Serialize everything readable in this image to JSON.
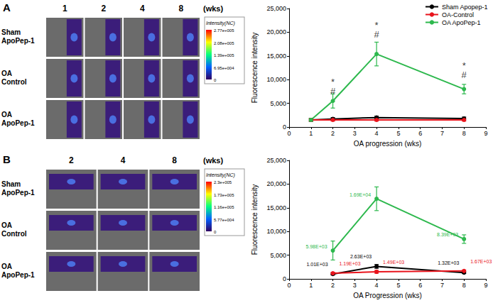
{
  "image_panels": [
    {
      "label": "A",
      "columns": [
        "1",
        "2",
        "4",
        "8"
      ],
      "unit": "(wks)",
      "rows": [
        "Sham ApoPep-1",
        "OA Control",
        "OA ApoPep-1"
      ],
      "colorbar": {
        "title": "Intensity(NC)",
        "labels": [
          "2.77e+005",
          "2.08e+005",
          "1.39e+005",
          "6.95e+004",
          "0"
        ]
      }
    },
    {
      "label": "B",
      "columns": [
        "2",
        "4",
        "8"
      ],
      "unit": "(wks)",
      "rows": [
        "Sham ApoPep-1",
        "OA Control",
        "OA ApoPep-1"
      ],
      "colorbar": {
        "title": "Intensity(NC)",
        "labels": [
          "2.3e+005",
          "1.73e+005",
          "1.16e+005",
          "5.77e+004",
          "0"
        ]
      }
    }
  ],
  "chart_data": [
    {
      "type": "line",
      "x_label": "OA progression (wks)",
      "y_label": "Fluorescence intensity",
      "xlim": [
        0,
        9
      ],
      "xticks": [
        0,
        1,
        2,
        3,
        4,
        5,
        6,
        7,
        8,
        9
      ],
      "ylim": [
        0,
        25000
      ],
      "yticks": [
        0,
        {
          "value": 5000,
          "label": "5,000"
        },
        {
          "value": 10000,
          "label": "10,000"
        },
        {
          "value": 15000,
          "label": "15,000"
        },
        {
          "value": 20000,
          "label": "20,000"
        },
        {
          "value": 25000,
          "label": "25,000"
        }
      ],
      "grid": false,
      "legend": "top-right",
      "marker": "circle",
      "series": [
        {
          "name": "Sham Apopep-1",
          "color": "#000000",
          "x": [
            1,
            2,
            4,
            8
          ],
          "values": [
            1500,
            1700,
            2000,
            1800
          ],
          "errors": [
            300,
            300,
            300,
            300
          ]
        },
        {
          "name": "OA-Control",
          "color": "#e8141c",
          "x": [
            1,
            2,
            4,
            8
          ],
          "values": [
            1500,
            1500,
            1500,
            1500
          ],
          "errors": [
            250,
            250,
            250,
            250
          ]
        },
        {
          "name": "OA ApoPep-1",
          "color": "#2db84d",
          "x": [
            1,
            2,
            4,
            8
          ],
          "values": [
            1500,
            5500,
            15400,
            8000
          ],
          "errors": [
            300,
            1500,
            2500,
            1000
          ]
        }
      ],
      "annotations": [
        {
          "x": 2,
          "y": 9500,
          "text": "*"
        },
        {
          "x": 2,
          "y": 7500,
          "text": "#"
        },
        {
          "x": 4,
          "y": 21500,
          "text": "*"
        },
        {
          "x": 4,
          "y": 19500,
          "text": "#"
        },
        {
          "x": 8,
          "y": 13000,
          "text": "*"
        },
        {
          "x": 8,
          "y": 11000,
          "text": "#"
        }
      ]
    },
    {
      "type": "line",
      "x_label": "OA Progression (wks)",
      "y_label": "Fluorescence intensity",
      "xlim": [
        0,
        9
      ],
      "xticks": [
        0,
        1,
        2,
        3,
        4,
        5,
        6,
        7,
        8,
        9
      ],
      "ylim": [
        0,
        25000
      ],
      "yticks": [
        0,
        {
          "value": 5000,
          "label": "5,000"
        },
        {
          "value": 10000,
          "label": "10,000"
        },
        {
          "value": 15000,
          "label": "15,000"
        },
        {
          "value": 20000,
          "label": "20,000"
        },
        {
          "value": 25000,
          "label": "25,000"
        }
      ],
      "grid": false,
      "data_labels": true,
      "marker": "circle",
      "series": [
        {
          "name": "Sham Apopep-1",
          "color": "#000000",
          "x": [
            2,
            4,
            8
          ],
          "values": [
            1010,
            2630,
            1320
          ],
          "value_labels": [
            "1.01E+03",
            "2.63E+03",
            "1.32E+03"
          ],
          "errors": [
            200,
            400,
            200
          ]
        },
        {
          "name": "OA-Control",
          "color": "#e8141c",
          "x": [
            2,
            4,
            8
          ],
          "values": [
            1190,
            1490,
            1670
          ],
          "value_labels": [
            "1.19E+03",
            "1.49E+03",
            "1.67E+03"
          ],
          "errors": [
            200,
            300,
            200
          ]
        },
        {
          "name": "OA ApoPep-1",
          "color": "#2db84d",
          "x": [
            2,
            4,
            8
          ],
          "values": [
            5980,
            16900,
            8390
          ],
          "value_labels": [
            "5.98E+03",
            "1.69E+04",
            "8.39E+03"
          ],
          "errors": [
            2000,
            2500,
            900
          ]
        }
      ]
    }
  ]
}
